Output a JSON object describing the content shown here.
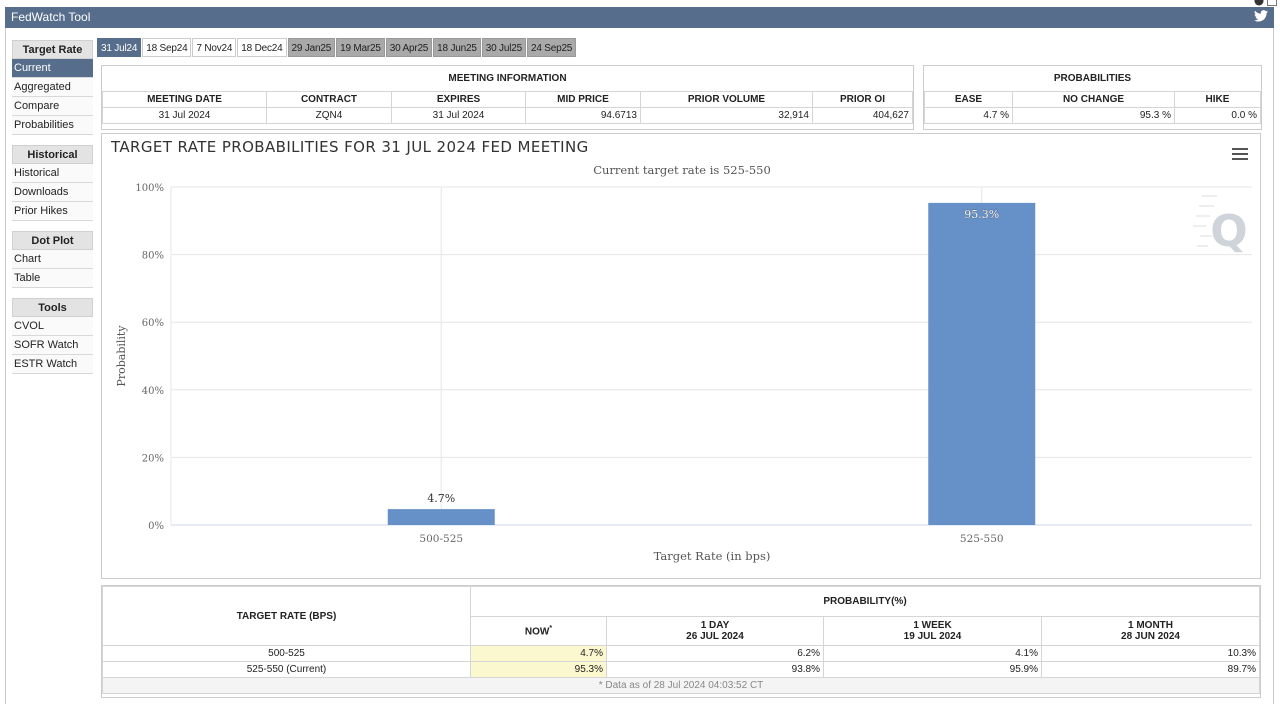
{
  "app": {
    "title": "FedWatch Tool"
  },
  "sidebar": {
    "sections": [
      {
        "header": "Target Rate",
        "items": [
          "Current",
          "Aggregated",
          "Compare",
          "Probabilities"
        ]
      },
      {
        "header": "Historical",
        "items": [
          "Historical",
          "Downloads",
          "Prior Hikes"
        ]
      },
      {
        "header": "Dot Plot",
        "items": [
          "Chart",
          "Table"
        ]
      },
      {
        "header": "Tools",
        "items": [
          "CVOL",
          "SOFR Watch",
          "ESTR Watch"
        ]
      }
    ]
  },
  "tabs": [
    {
      "label": "31 Jul24",
      "state": "active"
    },
    {
      "label": "18 Sep24",
      "state": "normal"
    },
    {
      "label": "7 Nov24",
      "state": "normal"
    },
    {
      "label": "18 Dec24",
      "state": "normal"
    },
    {
      "label": "29 Jan25",
      "state": "gray"
    },
    {
      "label": "19 Mar25",
      "state": "gray"
    },
    {
      "label": "30 Apr25",
      "state": "gray"
    },
    {
      "label": "18 Jun25",
      "state": "gray"
    },
    {
      "label": "30 Jul25",
      "state": "gray"
    },
    {
      "label": "24 Sep25",
      "state": "gray"
    }
  ],
  "meeting_info": {
    "title": "MEETING INFORMATION",
    "headers": [
      "MEETING DATE",
      "CONTRACT",
      "EXPIRES",
      "MID PRICE",
      "PRIOR VOLUME",
      "PRIOR OI"
    ],
    "row": [
      "31 Jul 2024",
      "ZQN4",
      "31 Jul 2024",
      "94.6713",
      "32,914",
      "404,627"
    ]
  },
  "probabilities": {
    "title": "PROBABILITIES",
    "headers": [
      "EASE",
      "NO CHANGE",
      "HIKE"
    ],
    "row": [
      "4.7 %",
      "95.3 %",
      "0.0 %"
    ]
  },
  "chart": {
    "title": "TARGET RATE PROBABILITIES FOR 31 JUL 2024 FED MEETING",
    "subtitle": "Current target rate is 525-550",
    "watermark": "Q"
  },
  "chart_data": {
    "type": "bar",
    "title": "TARGET RATE PROBABILITIES FOR 31 JUL 2024 FED MEETING",
    "subtitle": "Current target rate is 525-550",
    "categories": [
      "500-525",
      "525-550"
    ],
    "values": [
      4.7,
      95.3
    ],
    "data_labels": [
      "4.7%",
      "95.3%"
    ],
    "xlabel": "Target Rate (in bps)",
    "ylabel": "Probability",
    "ylim": [
      0,
      100
    ],
    "yticks": [
      "0%",
      "20%",
      "40%",
      "60%",
      "80%",
      "100%"
    ],
    "grid": true,
    "bar_color": "#6690c8"
  },
  "bottom_table": {
    "col_target": "TARGET RATE (BPS)",
    "prob_header": "PROBABILITY(%)",
    "now_label": "NOW",
    "now_mark": "*",
    "cols": [
      {
        "line1": "1 DAY",
        "line2": "26 JUL 2024"
      },
      {
        "line1": "1 WEEK",
        "line2": "19 JUL 2024"
      },
      {
        "line1": "1 MONTH",
        "line2": "28 JUN 2024"
      }
    ],
    "rows": [
      {
        "rate": "500-525",
        "now": "4.7%",
        "vals": [
          "6.2%",
          "4.1%",
          "10.3%"
        ]
      },
      {
        "rate": "525-550 (Current)",
        "now": "95.3%",
        "vals": [
          "93.8%",
          "95.9%",
          "89.7%"
        ]
      }
    ],
    "footnote": "* Data as of 28 Jul 2024 04:03:52 CT"
  }
}
